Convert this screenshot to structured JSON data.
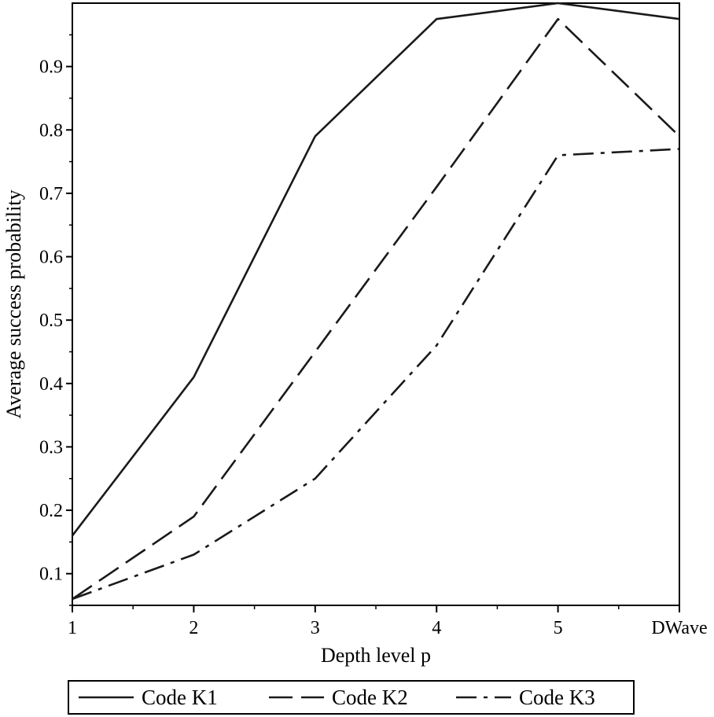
{
  "chart_data": {
    "type": "line",
    "categories": [
      "1",
      "2",
      "3",
      "4",
      "5",
      "DWave"
    ],
    "xlabel": "Depth level p",
    "ylabel": "Average success probability",
    "ylim": [
      0.05,
      1.0
    ],
    "yticks": [
      "0.1",
      "0.2",
      "0.3",
      "0.4",
      "0.5",
      "0.6",
      "0.7",
      "0.8",
      "0.9"
    ],
    "grid": false,
    "legend_position": "bottom",
    "series": [
      {
        "name": "Code K1",
        "style": "solid",
        "color": "#1a1a1a",
        "values": [
          0.16,
          0.41,
          0.79,
          0.975,
          1.0,
          0.975
        ]
      },
      {
        "name": "Code K2",
        "style": "dashed",
        "color": "#1a1a1a",
        "values": [
          0.06,
          0.19,
          0.45,
          0.71,
          0.975,
          0.79
        ]
      },
      {
        "name": "Code K3",
        "style": "dash-dot",
        "color": "#1a1a1a",
        "values": [
          0.06,
          0.13,
          0.25,
          0.46,
          0.76,
          0.77
        ]
      }
    ]
  }
}
